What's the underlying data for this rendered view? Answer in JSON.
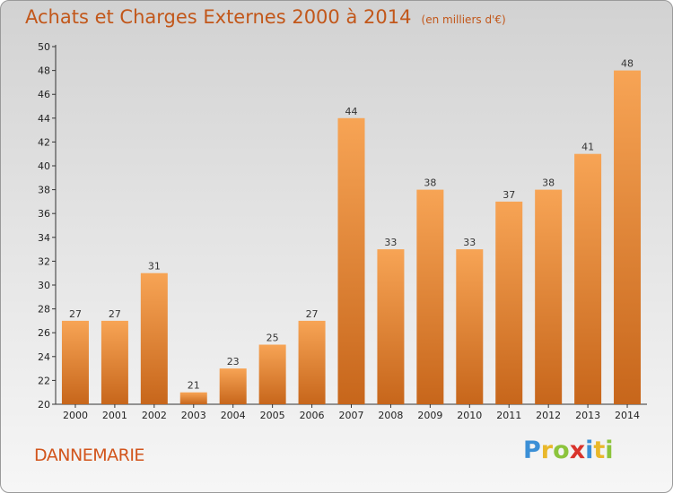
{
  "chart_data": {
    "type": "bar",
    "title": "Achats et Charges Externes 2000 à 2014",
    "subtitle": "(en milliers d'€)",
    "categories": [
      "2000",
      "2001",
      "2002",
      "2003",
      "2004",
      "2005",
      "2006",
      "2007",
      "2008",
      "2009",
      "2010",
      "2011",
      "2012",
      "2013",
      "2014"
    ],
    "values": [
      27,
      27,
      31,
      21,
      23,
      25,
      27,
      44,
      33,
      38,
      33,
      37,
      38,
      41,
      48
    ],
    "ylim": [
      20,
      50
    ],
    "yticks": [
      20,
      22,
      24,
      26,
      28,
      30,
      32,
      34,
      36,
      38,
      40,
      42,
      44,
      46,
      48,
      50
    ],
    "grid": false,
    "legend": "none",
    "bar_color_light": "#f7a455",
    "bar_color_dark": "#c7661b"
  },
  "commune": "DANNEMARIE",
  "logo": {
    "letters": [
      "P",
      "r",
      "o",
      "x",
      "i",
      "t",
      "i"
    ],
    "colors": [
      "#3b8fd6",
      "#e9b82a",
      "#8cc43c",
      "#d9332b",
      "#3b8fd6",
      "#e9b82a",
      "#8cc43c"
    ]
  }
}
